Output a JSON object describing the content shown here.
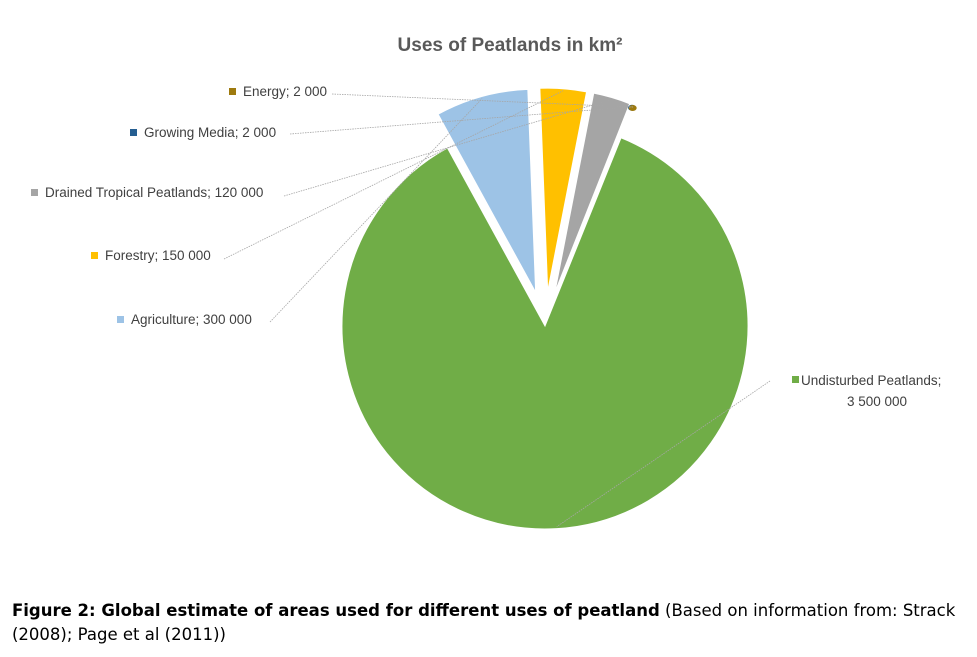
{
  "chart_data": {
    "type": "pie",
    "title": "Uses of Peatlands in km²",
    "slices": [
      {
        "label": "Undisturbed Peatlands",
        "value": 3500000,
        "value_text": "3 500 000",
        "color": "#70ad47"
      },
      {
        "label": "Agriculture",
        "value": 300000,
        "value_text": "300 000",
        "color": "#9dc3e6"
      },
      {
        "label": "Forestry",
        "value": 150000,
        "value_text": "150 000",
        "color": "#ffc000"
      },
      {
        "label": "Drained Tropical Peatlands",
        "value": 120000,
        "value_text": "120 000",
        "color": "#a5a5a5"
      },
      {
        "label": "Growing Media",
        "value": 2000,
        "value_text": "2 000",
        "color": "#255e91"
      },
      {
        "label": "Energy",
        "value": 2000,
        "value_text": "2 000",
        "color": "#9e7a0e"
      }
    ],
    "legend": "none (data labels with leader lines)"
  },
  "caption": {
    "bold": "Figure 2: Global estimate of areas used for different uses of peatland",
    "rest": " (Based on information from: Strack (2008); Page et al (2011))"
  }
}
